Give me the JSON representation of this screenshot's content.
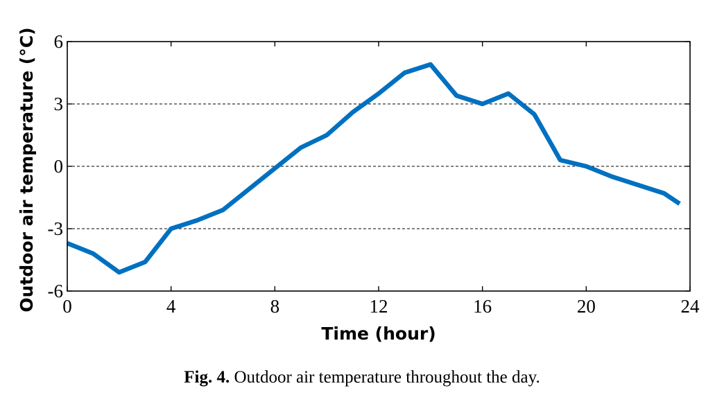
{
  "chart_data": {
    "type": "line",
    "title": "",
    "xlabel": "Time (hour)",
    "ylabel": "Outdoor air temperature (°C)",
    "xlim": [
      0,
      24
    ],
    "ylim": [
      -6,
      6
    ],
    "xticks": [
      0,
      4,
      8,
      12,
      16,
      20,
      24
    ],
    "yticks": [
      -6,
      -3,
      0,
      3,
      6
    ],
    "xtick_labels": [
      "0",
      "4",
      "8",
      "12",
      "16",
      "20",
      "24"
    ],
    "ytick_labels": [
      "-6",
      "-3",
      "0",
      "3",
      "6"
    ],
    "grid": "dashed horizontal lines at y = -3, 0, 3",
    "series": [
      {
        "name": "Outdoor air temperature",
        "color": "#0070C0",
        "x": [
          0,
          1,
          2,
          3,
          4,
          5,
          6,
          7,
          8,
          9,
          10,
          11,
          12,
          13,
          14,
          15,
          16,
          17,
          18,
          19,
          20,
          21,
          22,
          23,
          23.6
        ],
        "y": [
          -3.7,
          -4.2,
          -5.1,
          -4.6,
          -3.0,
          -2.6,
          -2.1,
          -1.1,
          -0.1,
          0.9,
          1.5,
          2.6,
          3.5,
          4.5,
          4.9,
          3.4,
          3.0,
          3.5,
          2.5,
          0.3,
          0.0,
          -0.5,
          -0.9,
          -1.3,
          -1.8
        ]
      }
    ]
  },
  "caption": {
    "label": "Fig. 4.",
    "text": "Outdoor air temperature throughout the day."
  }
}
